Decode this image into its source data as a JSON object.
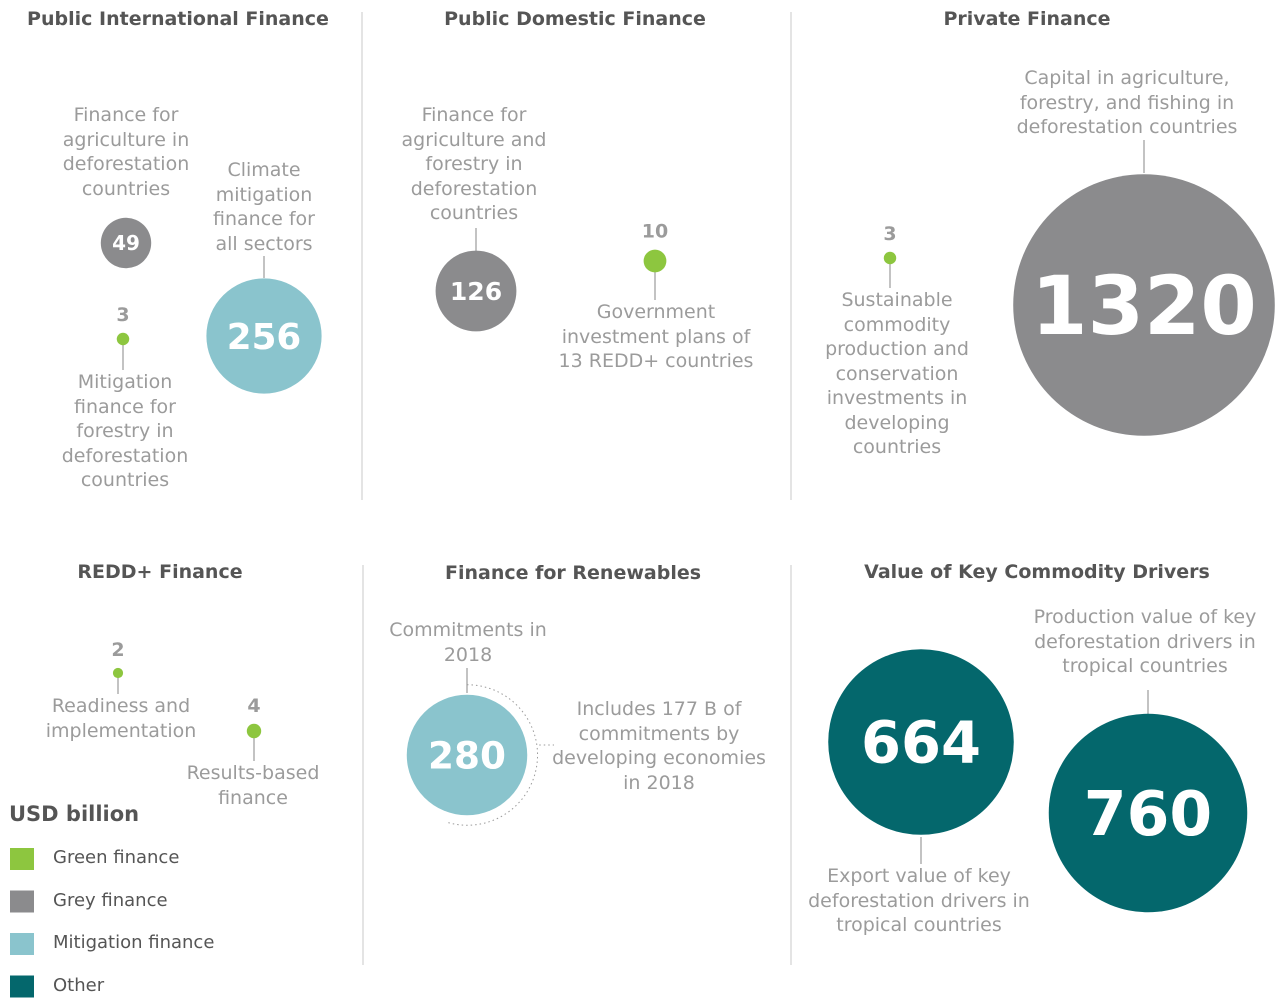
{
  "unit_label": "USD billion",
  "legend": [
    {
      "name": "Green finance",
      "color": "#8dc63f"
    },
    {
      "name": "Grey finance",
      "color": "#8b8b8d"
    },
    {
      "name": "Mitigation finance",
      "color": "#8ac4cd"
    },
    {
      "name": "Other",
      "color": "#04676c"
    }
  ],
  "panels": [
    {
      "title": "Public International Finance",
      "items": [
        {
          "label": "Finance for agriculture in deforestation countries",
          "value": 49,
          "color": "#8b8b8d"
        },
        {
          "label": "Mitigation finance for forestry in deforestation countries",
          "value": 3,
          "color": "#8dc63f"
        },
        {
          "label": "Climate mitigation finance for all sectors",
          "value": 256,
          "color": "#8ac4cd"
        }
      ]
    },
    {
      "title": "Public Domestic Finance",
      "items": [
        {
          "label": "Finance for agriculture and forestry in deforestation countries",
          "value": 126,
          "color": "#8b8b8d"
        },
        {
          "label": "Government investment plans of 13 REDD+ countries",
          "value": 10,
          "color": "#8dc63f"
        }
      ]
    },
    {
      "title": "Private Finance",
      "items": [
        {
          "label": "Sustainable commodity production and conservation investments in developing countries",
          "value": 3,
          "color": "#8dc63f"
        },
        {
          "label": "Capital in agriculture, forestry, and fishing in deforestation countries",
          "value": 1320,
          "color": "#8b8b8d"
        }
      ]
    },
    {
      "title": "REDD+ Finance",
      "items": [
        {
          "label": "Readiness and implementation",
          "value": 2,
          "color": "#8dc63f"
        },
        {
          "label": "Results-based finance",
          "value": 4,
          "color": "#8dc63f"
        }
      ]
    },
    {
      "title": "Finance for Renewables",
      "items": [
        {
          "label": "Commitments in 2018",
          "value": 280,
          "color": "#8ac4cd",
          "note": "Includes 177 B of commitments by developing economies in 2018"
        }
      ]
    },
    {
      "title": "Value of Key Commodity Drivers",
      "items": [
        {
          "label": "Export value of key deforestation drivers in tropical countries",
          "value": 664,
          "color": "#04676c"
        },
        {
          "label": "Production value of key deforestation drivers in tropical countries",
          "value": 760,
          "color": "#04676c"
        }
      ]
    }
  ]
}
